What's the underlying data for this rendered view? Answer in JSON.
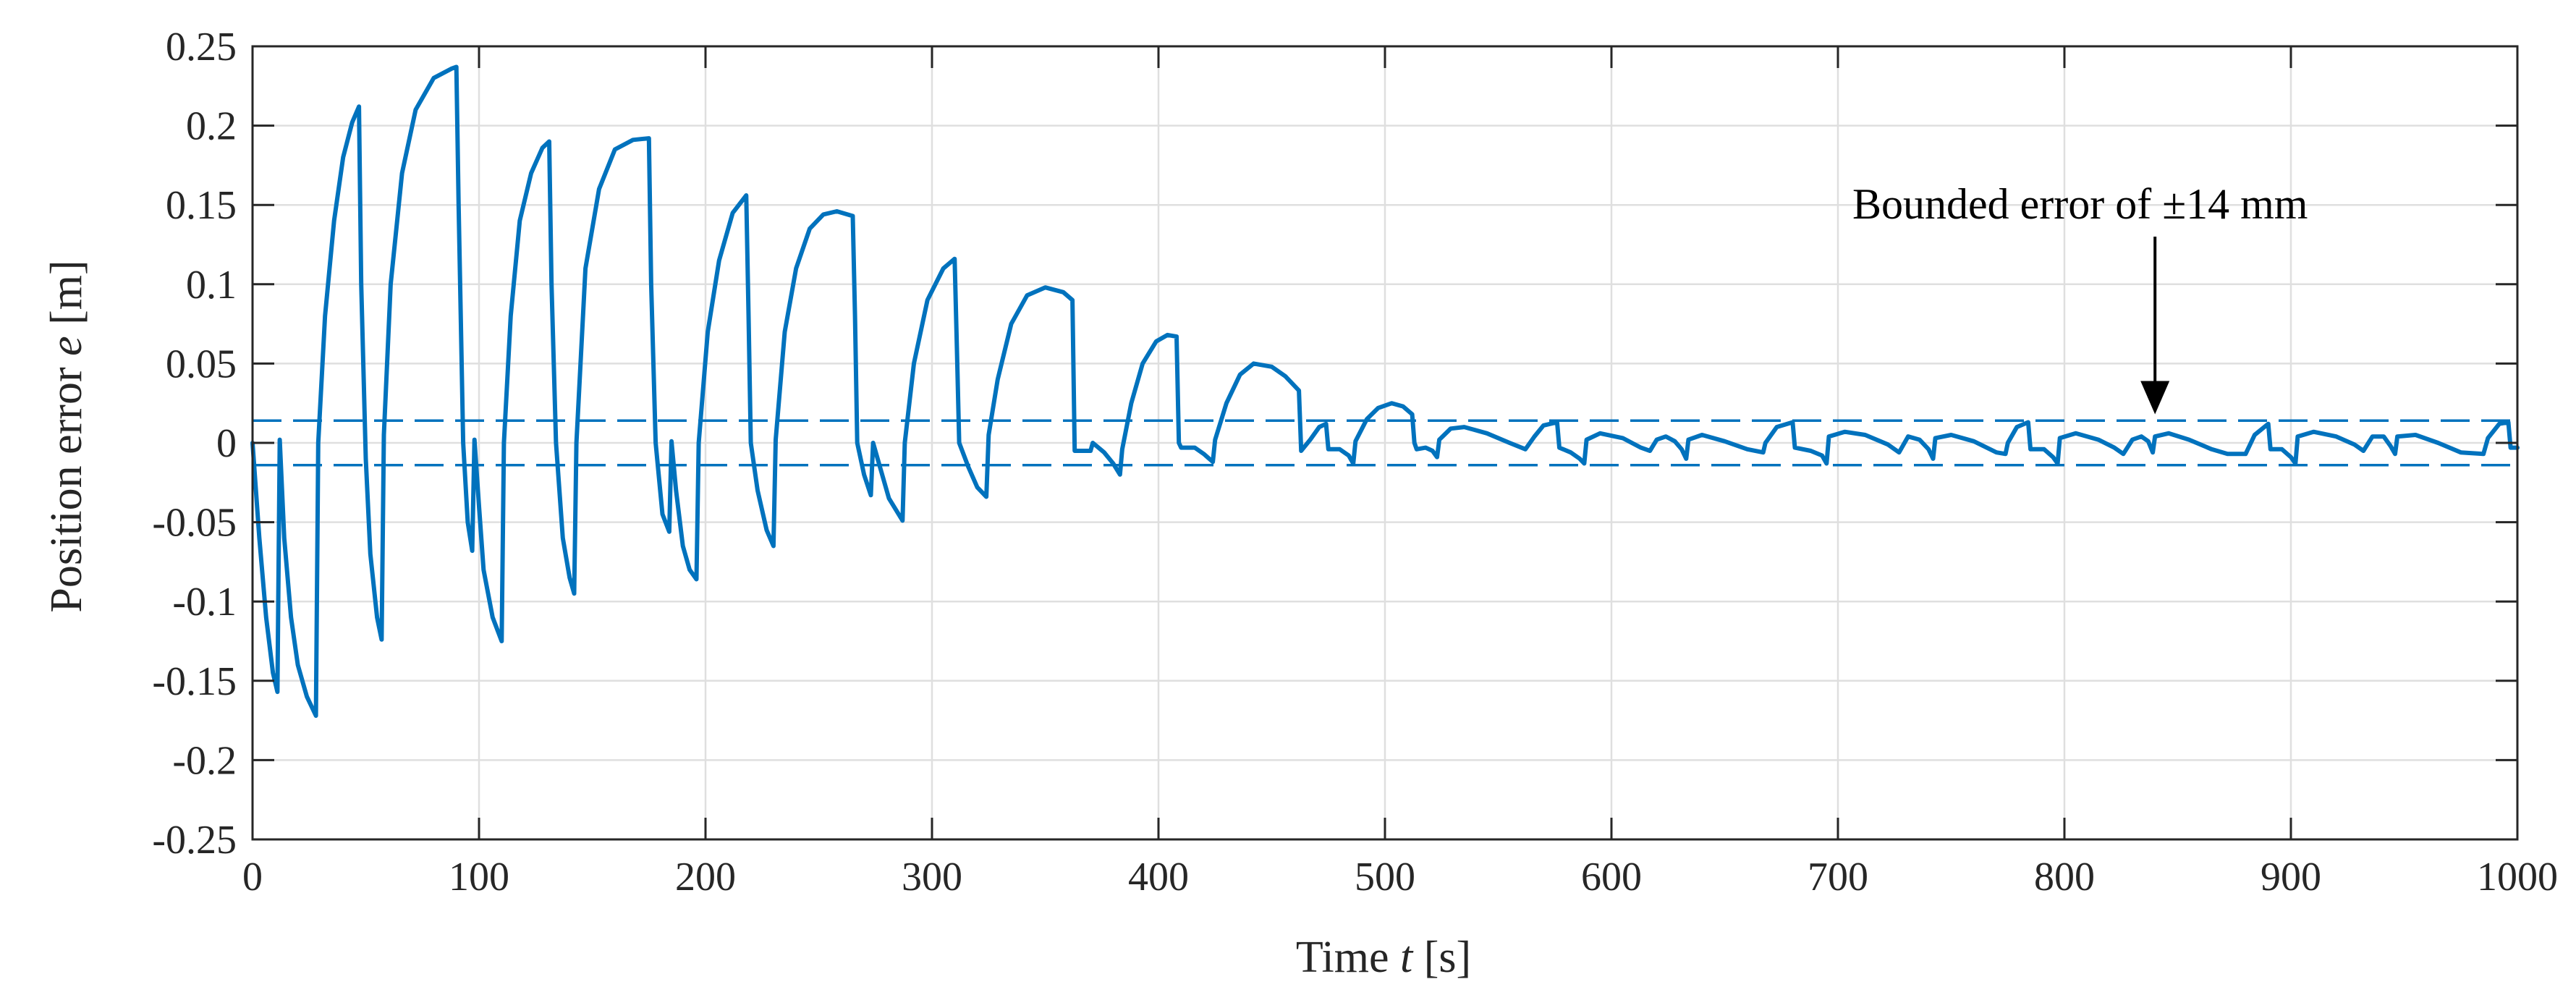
{
  "chart_data": {
    "type": "line",
    "xlabel_parts": [
      "Time ",
      "t",
      " [s]"
    ],
    "ylabel_parts": [
      "Position error ",
      "e",
      " [m]"
    ],
    "xlim": [
      0,
      1000
    ],
    "ylim": [
      -0.25,
      0.25
    ],
    "grid": true,
    "x_ticks": [
      0,
      100,
      200,
      300,
      400,
      500,
      600,
      700,
      800,
      900,
      1000
    ],
    "x_tick_labels": [
      "0",
      "100",
      "200",
      "300",
      "400",
      "500",
      "600",
      "700",
      "800",
      "900",
      "1000"
    ],
    "y_ticks": [
      0.25,
      0.2,
      0.15,
      0.1,
      0.05,
      0,
      -0.05,
      -0.1,
      -0.15,
      -0.2,
      -0.25
    ],
    "y_tick_labels": [
      "0.25",
      "0.2",
      "0.15",
      "0.1",
      "0.05",
      "0",
      "-0.05",
      "-0.1",
      "-0.15",
      "-0.2",
      "-0.25"
    ],
    "bounds": [
      0.014,
      -0.014
    ],
    "annotation": {
      "text": "Bounded error of ±14 mm",
      "arrow_x": 840,
      "arrow_tip_y": 0.018
    },
    "series": [
      {
        "name": "Position error",
        "color": "#0072BD",
        "points": [
          [
            0,
            0
          ],
          [
            3,
            -0.06
          ],
          [
            6,
            -0.11
          ],
          [
            9,
            -0.145
          ],
          [
            11,
            -0.157
          ],
          [
            12,
            0.002
          ],
          [
            14,
            -0.06
          ],
          [
            17,
            -0.11
          ],
          [
            20,
            -0.14
          ],
          [
            24,
            -0.16
          ],
          [
            28,
            -0.172
          ],
          [
            29,
            0
          ],
          [
            32,
            0.08
          ],
          [
            36,
            0.14
          ],
          [
            40,
            0.18
          ],
          [
            44,
            0.202
          ],
          [
            47,
            0.212
          ],
          [
            48,
            0.1
          ],
          [
            50,
            -0.01
          ],
          [
            52,
            -0.07
          ],
          [
            55,
            -0.11
          ],
          [
            57,
            -0.124
          ],
          [
            58,
            0.005
          ],
          [
            61,
            0.1
          ],
          [
            66,
            0.17
          ],
          [
            72,
            0.21
          ],
          [
            80,
            0.23
          ],
          [
            88,
            0.236
          ],
          [
            90,
            0.237
          ],
          [
            91,
            0.15
          ],
          [
            93,
            0.0
          ],
          [
            95,
            -0.05
          ],
          [
            97,
            -0.068
          ],
          [
            98,
            0.002
          ],
          [
            100,
            -0.04
          ],
          [
            102,
            -0.08
          ],
          [
            106,
            -0.11
          ],
          [
            110,
            -0.125
          ],
          [
            111,
            0
          ],
          [
            114,
            0.08
          ],
          [
            118,
            0.14
          ],
          [
            123,
            0.17
          ],
          [
            128,
            0.186
          ],
          [
            131,
            0.19
          ],
          [
            132,
            0.1
          ],
          [
            134,
            0.0
          ],
          [
            137,
            -0.06
          ],
          [
            140,
            -0.085
          ],
          [
            142,
            -0.095
          ],
          [
            143,
            0
          ],
          [
            147,
            0.11
          ],
          [
            153,
            0.16
          ],
          [
            160,
            0.185
          ],
          [
            168,
            0.191
          ],
          [
            175,
            0.192
          ],
          [
            176,
            0.1
          ],
          [
            178,
            0.0
          ],
          [
            181,
            -0.045
          ],
          [
            184,
            -0.056
          ],
          [
            185,
            0.001
          ],
          [
            187,
            -0.03
          ],
          [
            190,
            -0.065
          ],
          [
            193,
            -0.08
          ],
          [
            196,
            -0.086
          ],
          [
            197,
            0
          ],
          [
            201,
            0.07
          ],
          [
            206,
            0.115
          ],
          [
            212,
            0.145
          ],
          [
            218,
            0.156
          ],
          [
            219,
            0.08
          ],
          [
            220,
            0.0
          ],
          [
            223,
            -0.03
          ],
          [
            227,
            -0.055
          ],
          [
            230,
            -0.065
          ],
          [
            231,
            0.002
          ],
          [
            235,
            0.07
          ],
          [
            240,
            0.11
          ],
          [
            246,
            0.135
          ],
          [
            252,
            0.144
          ],
          [
            258,
            0.146
          ],
          [
            265,
            0.143
          ],
          [
            266,
            0.08
          ],
          [
            267,
            0.0
          ],
          [
            270,
            -0.02
          ],
          [
            273,
            -0.033
          ],
          [
            274,
            0
          ],
          [
            277,
            -0.015
          ],
          [
            281,
            -0.035
          ],
          [
            287,
            -0.049
          ],
          [
            288,
            0
          ],
          [
            292,
            0.05
          ],
          [
            298,
            0.09
          ],
          [
            305,
            0.11
          ],
          [
            310,
            0.116
          ],
          [
            311,
            0.06
          ],
          [
            312,
            0
          ],
          [
            316,
            -0.015
          ],
          [
            320,
            -0.028
          ],
          [
            324,
            -0.034
          ],
          [
            325,
            0.005
          ],
          [
            329,
            0.04
          ],
          [
            335,
            0.075
          ],
          [
            342,
            0.093
          ],
          [
            350,
            0.098
          ],
          [
            358,
            0.095
          ],
          [
            362,
            0.09
          ],
          [
            363,
            -0.005
          ],
          [
            370,
            -0.005
          ],
          [
            371,
            0.0
          ],
          [
            376,
            -0.006
          ],
          [
            380,
            -0.013
          ],
          [
            383,
            -0.02
          ],
          [
            384,
            -0.004
          ],
          [
            388,
            0.025
          ],
          [
            393,
            0.05
          ],
          [
            399,
            0.064
          ],
          [
            404,
            0.068
          ],
          [
            408,
            0.067
          ],
          [
            409,
            0.0
          ],
          [
            410,
            -0.003
          ],
          [
            416,
            -0.003
          ],
          [
            420,
            -0.007
          ],
          [
            424,
            -0.012
          ],
          [
            425,
            0.002
          ],
          [
            430,
            0.025
          ],
          [
            436,
            0.043
          ],
          [
            442,
            0.05
          ],
          [
            450,
            0.048
          ],
          [
            456,
            0.042
          ],
          [
            462,
            0.033
          ],
          [
            463,
            -0.005
          ],
          [
            467,
            0.002
          ],
          [
            471,
            0.01
          ],
          [
            474,
            0.012
          ],
          [
            475,
            -0.004
          ],
          [
            480,
            -0.004
          ],
          [
            484,
            -0.008
          ],
          [
            486,
            -0.013
          ],
          [
            487,
            0.001
          ],
          [
            492,
            0.015
          ],
          [
            497,
            0.022
          ],
          [
            503,
            0.025
          ],
          [
            508,
            0.023
          ],
          [
            512,
            0.018
          ],
          [
            513,
            0.0
          ],
          [
            514,
            -0.004
          ],
          [
            518,
            -0.003
          ],
          [
            521,
            -0.005
          ],
          [
            523,
            -0.009
          ],
          [
            524,
            0.002
          ],
          [
            529,
            0.009
          ],
          [
            535,
            0.01
          ],
          [
            545,
            0.006
          ],
          [
            555,
            0.0
          ],
          [
            562,
            -0.004
          ],
          [
            566,
            0.004
          ],
          [
            570,
            0.011
          ],
          [
            576,
            0.013
          ],
          [
            577,
            -0.003
          ],
          [
            582,
            -0.006
          ],
          [
            586,
            -0.01
          ],
          [
            588,
            -0.013
          ],
          [
            589,
            0.002
          ],
          [
            595,
            0.006
          ],
          [
            605,
            0.003
          ],
          [
            613,
            -0.003
          ],
          [
            617,
            -0.005
          ],
          [
            620,
            0.002
          ],
          [
            624,
            0.004
          ],
          [
            628,
            0.001
          ],
          [
            631,
            -0.004
          ],
          [
            633,
            -0.01
          ],
          [
            634,
            0.002
          ],
          [
            640,
            0.005
          ],
          [
            650,
            0.001
          ],
          [
            660,
            -0.004
          ],
          [
            667,
            -0.006
          ],
          [
            668,
            0.0
          ],
          [
            673,
            0.01
          ],
          [
            680,
            0.013
          ],
          [
            681,
            -0.003
          ],
          [
            688,
            -0.005
          ],
          [
            693,
            -0.008
          ],
          [
            695,
            -0.013
          ],
          [
            696,
            0.004
          ],
          [
            703,
            0.007
          ],
          [
            712,
            0.005
          ],
          [
            722,
            -0.001
          ],
          [
            727,
            -0.006
          ],
          [
            731,
            0.004
          ],
          [
            736,
            0.002
          ],
          [
            740,
            -0.004
          ],
          [
            742,
            -0.01
          ],
          [
            743,
            0.003
          ],
          [
            750,
            0.005
          ],
          [
            760,
            0.001
          ],
          [
            770,
            -0.006
          ],
          [
            774,
            -0.007
          ],
          [
            775,
            0.0
          ],
          [
            779,
            0.01
          ],
          [
            784,
            0.013
          ],
          [
            785,
            -0.004
          ],
          [
            791,
            -0.004
          ],
          [
            795,
            -0.009
          ],
          [
            797,
            -0.013
          ],
          [
            798,
            0.003
          ],
          [
            805,
            0.006
          ],
          [
            815,
            0.002
          ],
          [
            822,
            -0.003
          ],
          [
            826,
            -0.007
          ],
          [
            830,
            0.002
          ],
          [
            834,
            0.004
          ],
          [
            837,
            0.001
          ],
          [
            839,
            -0.006
          ],
          [
            840,
            0.004
          ],
          [
            846,
            0.006
          ],
          [
            855,
            0.002
          ],
          [
            865,
            -0.004
          ],
          [
            872,
            -0.007
          ],
          [
            880,
            -0.007
          ],
          [
            884,
            0.005
          ],
          [
            890,
            0.012
          ],
          [
            891,
            -0.004
          ],
          [
            896,
            -0.004
          ],
          [
            900,
            -0.009
          ],
          [
            902,
            -0.013
          ],
          [
            903,
            0.004
          ],
          [
            910,
            0.007
          ],
          [
            920,
            0.004
          ],
          [
            928,
            -0.001
          ],
          [
            932,
            -0.005
          ],
          [
            936,
            0.004
          ],
          [
            941,
            0.004
          ],
          [
            944,
            -0.002
          ],
          [
            946,
            -0.007
          ],
          [
            947,
            0.004
          ],
          [
            955,
            0.005
          ],
          [
            965,
            0.0
          ],
          [
            975,
            -0.006
          ],
          [
            985,
            -0.007
          ],
          [
            987,
            0.003
          ],
          [
            992,
            0.012
          ],
          [
            996,
            0.013
          ],
          [
            997,
            -0.003
          ],
          [
            1000,
            -0.003
          ]
        ]
      }
    ]
  }
}
